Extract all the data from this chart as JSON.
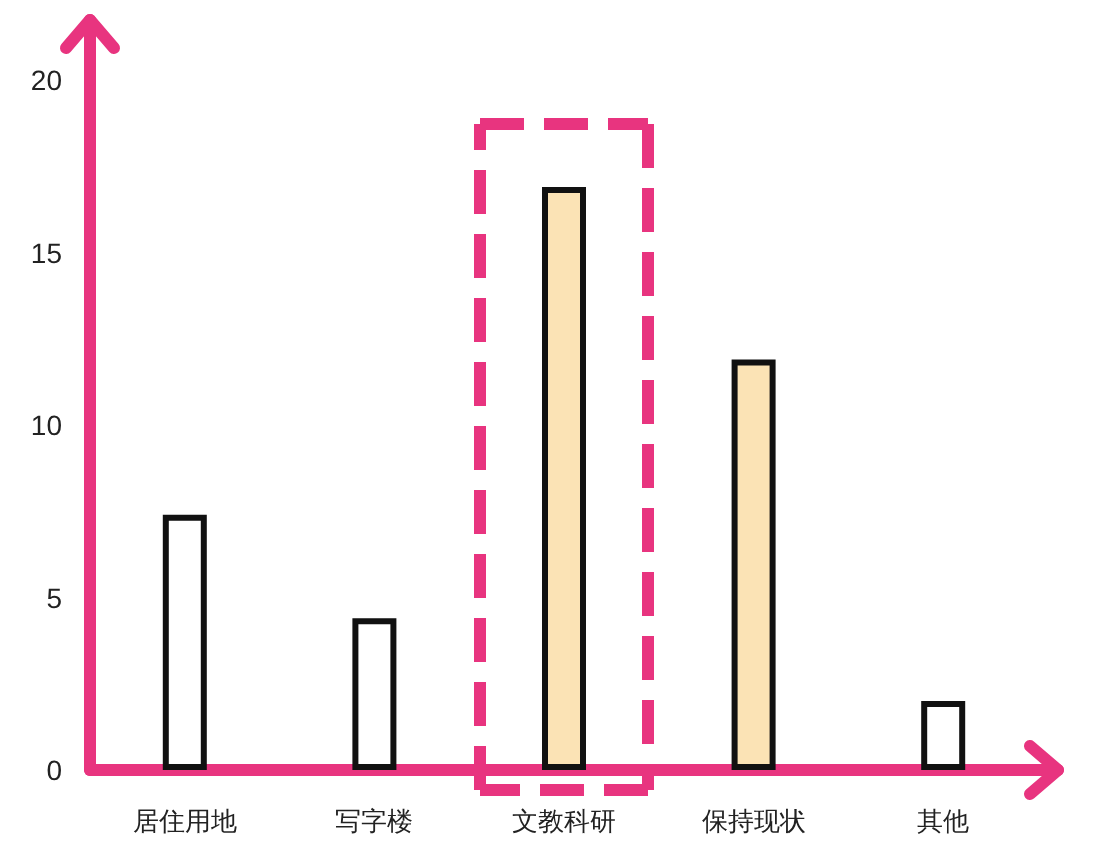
{
  "chart_data": {
    "type": "bar",
    "categories": [
      "居住用地",
      "写字楼",
      "文教科研",
      "保持现状",
      "其他"
    ],
    "values": [
      7.4,
      4.4,
      16.9,
      11.9,
      2
    ],
    "colors": [
      "#ffffff",
      "#ffffff",
      "#fbe3b5",
      "#fbe3b5",
      "#ffffff"
    ],
    "ylim": [
      0,
      20
    ],
    "yticks": [
      0,
      5,
      10,
      15,
      20
    ],
    "grid": false
  }
}
